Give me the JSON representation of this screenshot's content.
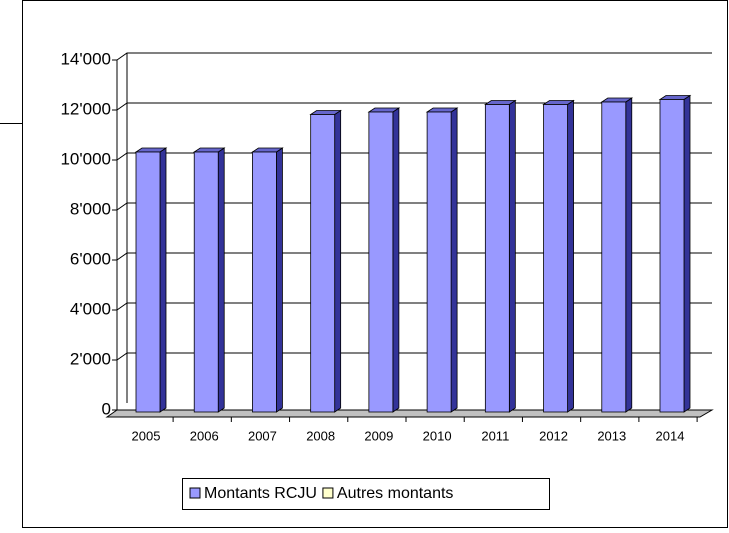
{
  "chart_data": {
    "type": "bar",
    "categories": [
      "2005",
      "2006",
      "2007",
      "2008",
      "2009",
      "2010",
      "2011",
      "2012",
      "2013",
      "2014"
    ],
    "series": [
      {
        "name": "Montants RCJU",
        "color": "#9999ff",
        "values": [
          10400,
          10400,
          10400,
          11900,
          12000,
          12000,
          12300,
          12300,
          12400,
          12500
        ]
      },
      {
        "name": "Autres montants",
        "color": "#ffffcc",
        "values": [
          0,
          0,
          0,
          0,
          0,
          0,
          0,
          0,
          0,
          0
        ]
      }
    ],
    "ylim": [
      0,
      14000
    ],
    "yticks": [
      0,
      {
        "value": 2000,
        "label": "2'000"
      },
      {
        "value": 4000,
        "label": "4'000"
      },
      {
        "value": 6000,
        "label": "6'000"
      },
      {
        "value": 8000,
        "label": "8'000"
      },
      {
        "value": 10000,
        "label": "10'000"
      },
      {
        "value": 12000,
        "label": "12'000"
      },
      {
        "value": 14000,
        "label": "14'000"
      }
    ],
    "grid": true,
    "legend": "bottom"
  }
}
